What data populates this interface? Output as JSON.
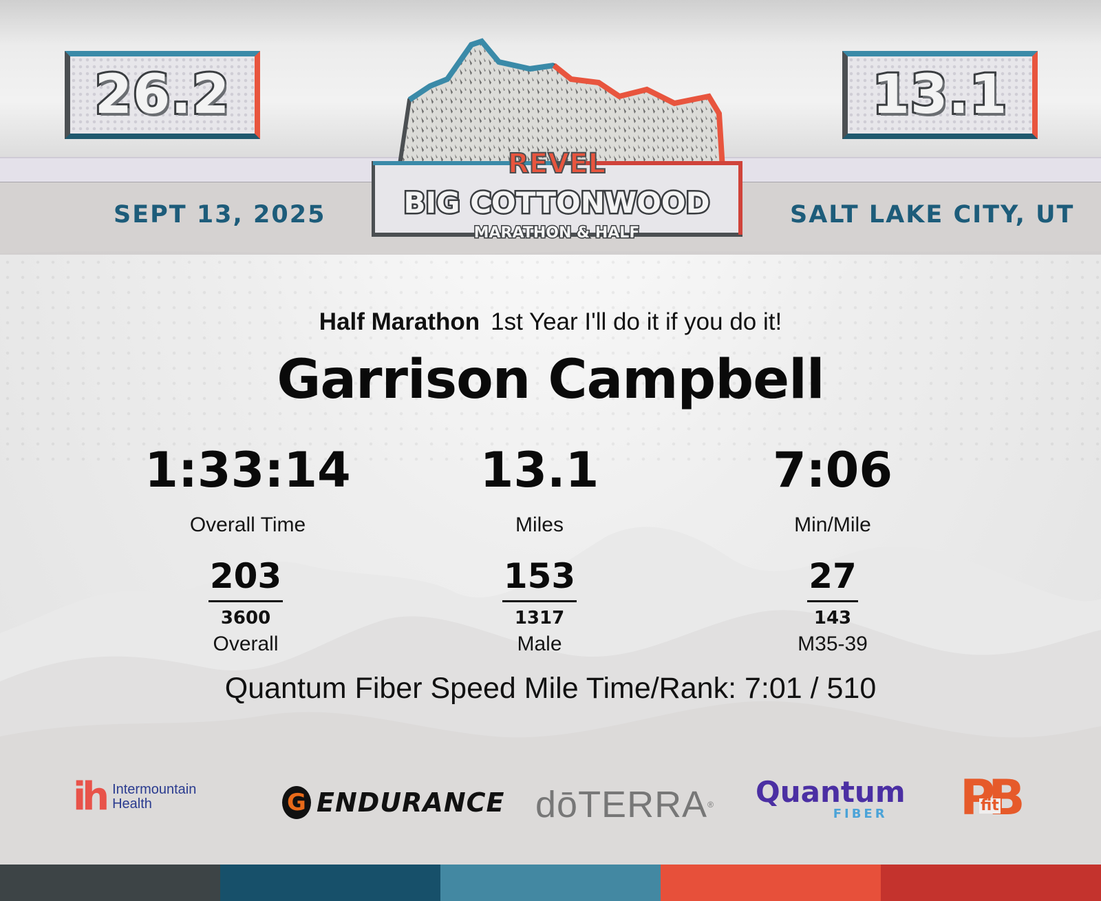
{
  "header": {
    "badge_left": "26.2",
    "badge_right": "13.1",
    "date": "SEPT 13, 2025",
    "city": "SALT LAKE CITY, UT",
    "logo": {
      "brand": "REVEL",
      "title": "BIG COTTONWOOD",
      "subtitle": "MARATHON & HALF"
    }
  },
  "result": {
    "race": "Half Marathon",
    "tagline": "1st Year I'll do it if you do it!",
    "name": "Garrison Campbell",
    "stats": [
      {
        "value": "1:33:14",
        "label": "Overall Time"
      },
      {
        "value": "13.1",
        "label": "Miles"
      },
      {
        "value": "7:06",
        "label": "Min/Mile"
      }
    ],
    "ranks": [
      {
        "place": "203",
        "total": "3600",
        "label": "Overall"
      },
      {
        "place": "153",
        "total": "1317",
        "label": "Male"
      },
      {
        "place": "27",
        "total": "143",
        "label": "M35-39"
      }
    ],
    "speed_mile": "Quantum Fiber Speed Mile Time/Rank: 7:01 / 510"
  },
  "sponsors": {
    "intermountain": {
      "mark": "ih",
      "line1": "Intermountain",
      "line2": "Health"
    },
    "gatorade": {
      "mark": "G",
      "text": "ENDURANCE"
    },
    "doterra": {
      "text": "dōTERRA",
      "reg": "®"
    },
    "quantum": {
      "line1": "Quantum",
      "line2": "FIBER"
    },
    "pbfit": {
      "mark": "PB",
      "fit": "fit"
    }
  },
  "colors": {
    "navy": "#1d5c7a",
    "accent_red": "#e8553e",
    "bar": [
      "#3d4446",
      "#17506a",
      "#4388a2",
      "#e7503a",
      "#c4332d"
    ]
  }
}
